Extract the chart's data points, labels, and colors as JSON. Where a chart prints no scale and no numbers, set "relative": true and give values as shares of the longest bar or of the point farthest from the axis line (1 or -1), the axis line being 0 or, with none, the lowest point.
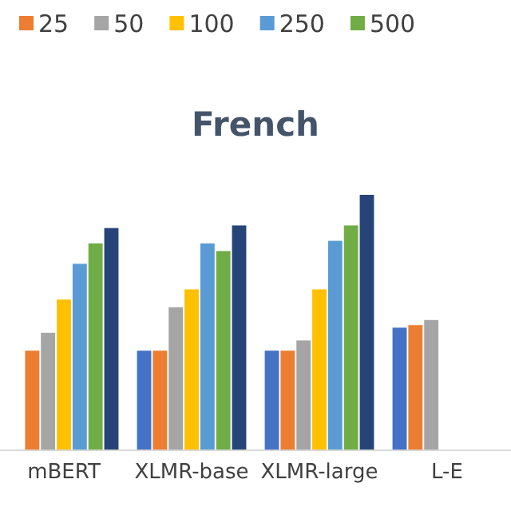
{
  "chart_data": {
    "type": "bar",
    "title": "French",
    "relative": true,
    "legend": "top",
    "categories": [
      "mBERT",
      "XLMR-base",
      "XLMR-large",
      "L-E"
    ],
    "series": [
      {
        "color": "#4472c4",
        "values": [
          null,
          0.39,
          0.39,
          0.48
        ]
      },
      {
        "name": "25",
        "color": "#ed7d31",
        "values": [
          0.39,
          0.39,
          0.39,
          0.49
        ]
      },
      {
        "name": "50",
        "color": "#a5a5a5",
        "values": [
          0.46,
          0.56,
          0.43,
          0.51
        ]
      },
      {
        "name": "100",
        "color": "#ffc000",
        "values": [
          0.59,
          0.63,
          0.63,
          null
        ]
      },
      {
        "name": "250",
        "color": "#5b9bd5",
        "values": [
          0.73,
          0.81,
          0.82,
          null
        ]
      },
      {
        "name": "500",
        "color": "#70ad47",
        "values": [
          0.81,
          0.78,
          0.88,
          null
        ]
      },
      {
        "color": "#264478",
        "values": [
          0.87,
          0.88,
          1.0,
          null
        ]
      }
    ]
  }
}
